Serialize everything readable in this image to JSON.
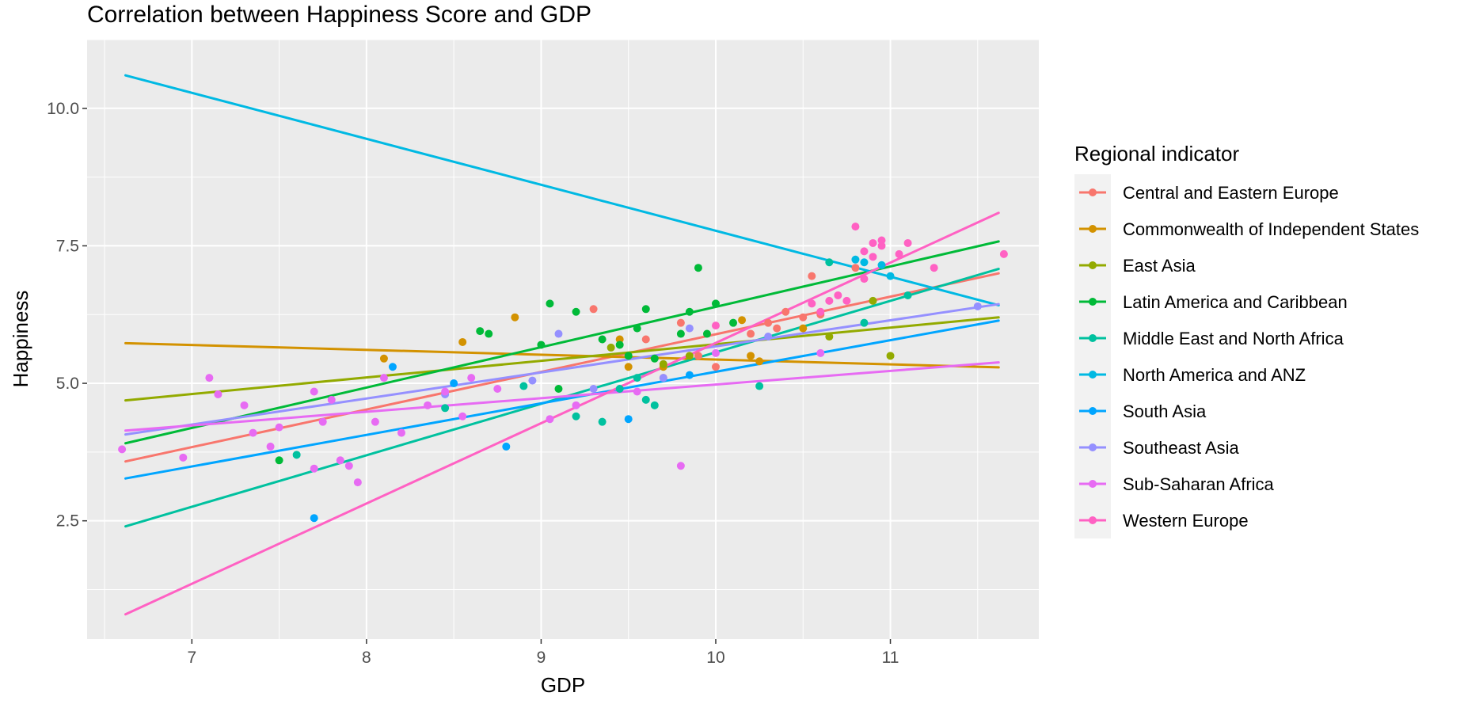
{
  "chart_data": {
    "type": "scatter",
    "title": "Correlation between Happiness Score and GDP",
    "xlabel": "GDP",
    "ylabel": "Happiness",
    "xlim": [
      6.4,
      11.85
    ],
    "ylim": [
      0.35,
      11.25
    ],
    "x_ticks": [
      7,
      8,
      9,
      10,
      11
    ],
    "x_tick_labels": [
      "7",
      "8",
      "9",
      "10",
      "11"
    ],
    "y_ticks": [
      2.5,
      5.0,
      7.5,
      10.0
    ],
    "y_tick_labels": [
      "2.5",
      "5.0",
      "7.5",
      "10.0"
    ],
    "grid": true,
    "legend": {
      "title": "Regional indicator",
      "position": "right"
    },
    "series": [
      {
        "name": "Central and Eastern Europe",
        "color": "#F8766D",
        "points": [
          [
            9.3,
            6.35
          ],
          [
            9.6,
            5.8
          ],
          [
            9.7,
            5.1
          ],
          [
            9.8,
            6.1
          ],
          [
            9.9,
            5.5
          ],
          [
            10.0,
            5.3
          ],
          [
            10.2,
            5.9
          ],
          [
            10.3,
            6.1
          ],
          [
            10.35,
            6.0
          ],
          [
            10.4,
            6.3
          ],
          [
            10.5,
            6.2
          ],
          [
            10.55,
            6.95
          ],
          [
            10.6,
            6.25
          ],
          [
            10.8,
            7.1
          ]
        ],
        "fit": [
          [
            6.62,
            3.58
          ],
          [
            11.62,
            7.0
          ]
        ]
      },
      {
        "name": "Commonwealth of Independent States",
        "color": "#D39200",
        "points": [
          [
            8.1,
            5.45
          ],
          [
            8.55,
            5.75
          ],
          [
            8.85,
            6.2
          ],
          [
            9.45,
            5.8
          ],
          [
            9.5,
            5.3
          ],
          [
            9.7,
            5.3
          ],
          [
            10.15,
            6.15
          ],
          [
            10.2,
            5.5
          ],
          [
            10.25,
            5.4
          ],
          [
            10.5,
            6.0
          ]
        ],
        "fit": [
          [
            6.62,
            5.73
          ],
          [
            11.62,
            5.29
          ]
        ]
      },
      {
        "name": "East Asia",
        "color": "#93AA00",
        "points": [
          [
            9.4,
            5.65
          ],
          [
            9.7,
            5.35
          ],
          [
            9.85,
            5.5
          ],
          [
            10.65,
            5.85
          ],
          [
            10.9,
            6.5
          ],
          [
            11.0,
            5.5
          ]
        ],
        "fit": [
          [
            6.62,
            4.69
          ],
          [
            11.62,
            6.2
          ]
        ]
      },
      {
        "name": "Latin America and Caribbean",
        "color": "#00BA38",
        "points": [
          [
            7.5,
            3.6
          ],
          [
            8.65,
            5.95
          ],
          [
            8.7,
            5.9
          ],
          [
            9.0,
            5.7
          ],
          [
            9.05,
            6.45
          ],
          [
            9.1,
            4.9
          ],
          [
            9.2,
            6.3
          ],
          [
            9.35,
            5.8
          ],
          [
            9.45,
            5.7
          ],
          [
            9.5,
            5.5
          ],
          [
            9.55,
            6.0
          ],
          [
            9.6,
            6.35
          ],
          [
            9.65,
            5.45
          ],
          [
            9.8,
            5.9
          ],
          [
            9.85,
            6.3
          ],
          [
            9.9,
            7.1
          ],
          [
            9.95,
            5.9
          ],
          [
            10.0,
            6.45
          ],
          [
            10.1,
            6.1
          ]
        ],
        "fit": [
          [
            6.62,
            3.91
          ],
          [
            11.62,
            7.58
          ]
        ]
      },
      {
        "name": "Middle East and North Africa",
        "color": "#00C19F",
        "points": [
          [
            7.6,
            3.7
          ],
          [
            8.45,
            4.55
          ],
          [
            8.9,
            4.95
          ],
          [
            9.2,
            4.4
          ],
          [
            9.35,
            4.3
          ],
          [
            9.45,
            4.9
          ],
          [
            9.55,
            5.1
          ],
          [
            9.6,
            4.7
          ],
          [
            9.65,
            4.6
          ],
          [
            10.25,
            4.95
          ],
          [
            10.65,
            7.2
          ],
          [
            10.85,
            6.1
          ],
          [
            11.1,
            6.6
          ]
        ],
        "fit": [
          [
            6.62,
            2.4
          ],
          [
            11.62,
            7.08
          ]
        ]
      },
      {
        "name": "North America and ANZ",
        "color": "#00B9E3",
        "points": [
          [
            10.8,
            7.25
          ],
          [
            10.85,
            7.2
          ],
          [
            10.95,
            7.15
          ],
          [
            11.0,
            6.95
          ]
        ],
        "fit": [
          [
            6.62,
            10.6
          ],
          [
            11.62,
            6.42
          ]
        ]
      },
      {
        "name": "South Asia",
        "color": "#00A5FF",
        "points": [
          [
            7.7,
            2.55
          ],
          [
            8.15,
            5.3
          ],
          [
            8.5,
            5.0
          ],
          [
            8.8,
            3.85
          ],
          [
            9.5,
            4.35
          ],
          [
            9.85,
            5.15
          ]
        ],
        "fit": [
          [
            6.62,
            3.27
          ],
          [
            11.62,
            6.14
          ]
        ]
      },
      {
        "name": "Southeast Asia",
        "color": "#9590FF",
        "points": [
          [
            8.45,
            4.8
          ],
          [
            8.95,
            5.05
          ],
          [
            9.1,
            5.9
          ],
          [
            9.3,
            4.9
          ],
          [
            9.7,
            5.1
          ],
          [
            9.85,
            6.0
          ],
          [
            10.3,
            5.85
          ],
          [
            11.5,
            6.4
          ]
        ],
        "fit": [
          [
            6.62,
            4.07
          ],
          [
            11.62,
            6.44
          ]
        ]
      },
      {
        "name": "Sub-Saharan Africa",
        "color": "#E76BF3",
        "points": [
          [
            6.6,
            3.8
          ],
          [
            6.95,
            3.65
          ],
          [
            7.1,
            5.1
          ],
          [
            7.15,
            4.8
          ],
          [
            7.3,
            4.6
          ],
          [
            7.35,
            4.1
          ],
          [
            7.45,
            3.85
          ],
          [
            7.5,
            4.2
          ],
          [
            7.7,
            3.45
          ],
          [
            7.7,
            4.85
          ],
          [
            7.75,
            4.3
          ],
          [
            7.8,
            4.7
          ],
          [
            7.85,
            3.6
          ],
          [
            7.9,
            3.5
          ],
          [
            7.95,
            3.2
          ],
          [
            8.05,
            4.3
          ],
          [
            8.1,
            5.1
          ],
          [
            8.2,
            4.1
          ],
          [
            8.35,
            4.6
          ],
          [
            8.45,
            4.85
          ],
          [
            8.55,
            4.4
          ],
          [
            8.6,
            5.1
          ],
          [
            8.75,
            4.9
          ],
          [
            9.05,
            4.35
          ],
          [
            9.2,
            4.6
          ],
          [
            9.55,
            4.85
          ],
          [
            9.8,
            3.5
          ],
          [
            10.0,
            5.55
          ],
          [
            10.6,
            5.55
          ]
        ],
        "fit": [
          [
            6.62,
            4.14
          ],
          [
            11.62,
            5.38
          ]
        ]
      },
      {
        "name": "Western Europe",
        "color": "#FF61C3",
        "points": [
          [
            10.0,
            6.05
          ],
          [
            10.55,
            6.45
          ],
          [
            10.6,
            6.3
          ],
          [
            10.65,
            6.5
          ],
          [
            10.7,
            6.6
          ],
          [
            10.75,
            6.5
          ],
          [
            10.8,
            7.85
          ],
          [
            10.85,
            6.9
          ],
          [
            10.85,
            7.4
          ],
          [
            10.9,
            7.55
          ],
          [
            10.9,
            7.3
          ],
          [
            10.95,
            7.5
          ],
          [
            10.95,
            7.6
          ],
          [
            11.05,
            7.35
          ],
          [
            11.1,
            7.55
          ],
          [
            11.25,
            7.1
          ],
          [
            11.65,
            7.35
          ]
        ],
        "fit": [
          [
            6.62,
            0.8
          ],
          [
            11.62,
            8.1
          ]
        ]
      }
    ]
  }
}
